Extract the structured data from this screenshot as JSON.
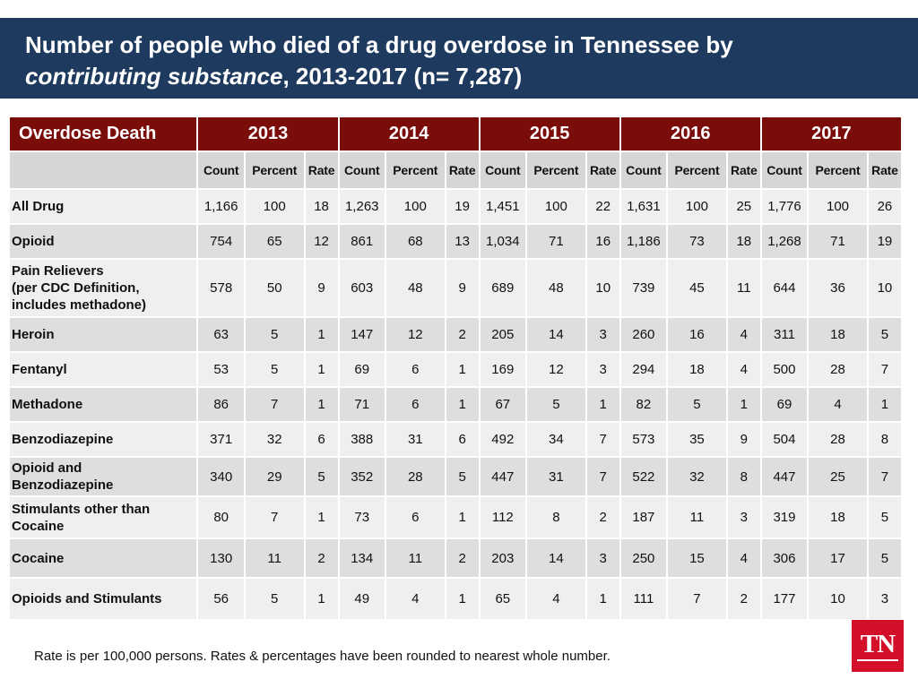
{
  "title": {
    "line1": "Number of people who died of a drug overdose in Tennessee by",
    "line2_italic": "contributing substance",
    "line2_rest": ", 2013-2017 (n= 7,287)"
  },
  "table": {
    "corner_label": "Overdose Death",
    "years": [
      "2013",
      "2014",
      "2015",
      "2016",
      "2017"
    ],
    "sub_headers": [
      "Count",
      "Percent",
      "Rate"
    ],
    "rows": [
      {
        "label": "All Drug",
        "values": [
          "1,166",
          "100",
          "18",
          "1,263",
          "100",
          "19",
          "1,451",
          "100",
          "22",
          "1,631",
          "100",
          "25",
          "1,776",
          "100",
          "26"
        ]
      },
      {
        "label": "Opioid",
        "values": [
          "754",
          "65",
          "12",
          "861",
          "68",
          "13",
          "1,034",
          "71",
          "16",
          "1,186",
          "73",
          "18",
          "1,268",
          "71",
          "19"
        ]
      },
      {
        "label": "Pain Relievers (per CDC Definition, includes methadone)",
        "label_lines": [
          "Pain Relievers",
          "(per CDC Definition,",
          "includes methadone)"
        ],
        "values": [
          "578",
          "50",
          "9",
          "603",
          "48",
          "9",
          "689",
          "48",
          "10",
          "739",
          "45",
          "11",
          "644",
          "36",
          "10"
        ]
      },
      {
        "label": "Heroin",
        "values": [
          "63",
          "5",
          "1",
          "147",
          "12",
          "2",
          "205",
          "14",
          "3",
          "260",
          "16",
          "4",
          "311",
          "18",
          "5"
        ]
      },
      {
        "label": "Fentanyl",
        "values": [
          "53",
          "5",
          "1",
          "69",
          "6",
          "1",
          "169",
          "12",
          "3",
          "294",
          "18",
          "4",
          "500",
          "28",
          "7"
        ]
      },
      {
        "label": "Methadone",
        "values": [
          "86",
          "7",
          "1",
          "71",
          "6",
          "1",
          "67",
          "5",
          "1",
          "82",
          "5",
          "1",
          "69",
          "4",
          "1"
        ]
      },
      {
        "label": "Benzodiazepine",
        "values": [
          "371",
          "32",
          "6",
          "388",
          "31",
          "6",
          "492",
          "34",
          "7",
          "573",
          "35",
          "9",
          "504",
          "28",
          "8"
        ]
      },
      {
        "label": "Opioid and Benzodiazepine",
        "label_lines": [
          "Opioid and",
          "Benzodiazepine"
        ],
        "values": [
          "340",
          "29",
          "5",
          "352",
          "28",
          "5",
          "447",
          "31",
          "7",
          "522",
          "32",
          "8",
          "447",
          "25",
          "7"
        ]
      },
      {
        "label": "Stimulants other than Cocaine",
        "label_lines": [
          "Stimulants other than",
          "Cocaine"
        ],
        "values": [
          "80",
          "7",
          "1",
          "73",
          "6",
          "1",
          "112",
          "8",
          "2",
          "187",
          "11",
          "3",
          "319",
          "18",
          "5"
        ]
      },
      {
        "label": "Cocaine",
        "values": [
          "130",
          "11",
          "2",
          "134",
          "11",
          "2",
          "203",
          "14",
          "3",
          "250",
          "15",
          "4",
          "306",
          "17",
          "5"
        ]
      },
      {
        "label": "Opioids and Stimulants",
        "values": [
          "56",
          "5",
          "1",
          "49",
          "4",
          "1",
          "65",
          "4",
          "1",
          "111",
          "7",
          "2",
          "177",
          "10",
          "3"
        ]
      }
    ]
  },
  "footnote": "Rate is per 100,000 persons.  Rates & percentages have been rounded to nearest whole number.",
  "logo": {
    "text": "TN"
  },
  "colors": {
    "title_bg": "#1f3a5f",
    "header_bg": "#7a0c0a",
    "logo_bg": "#d3102a"
  }
}
